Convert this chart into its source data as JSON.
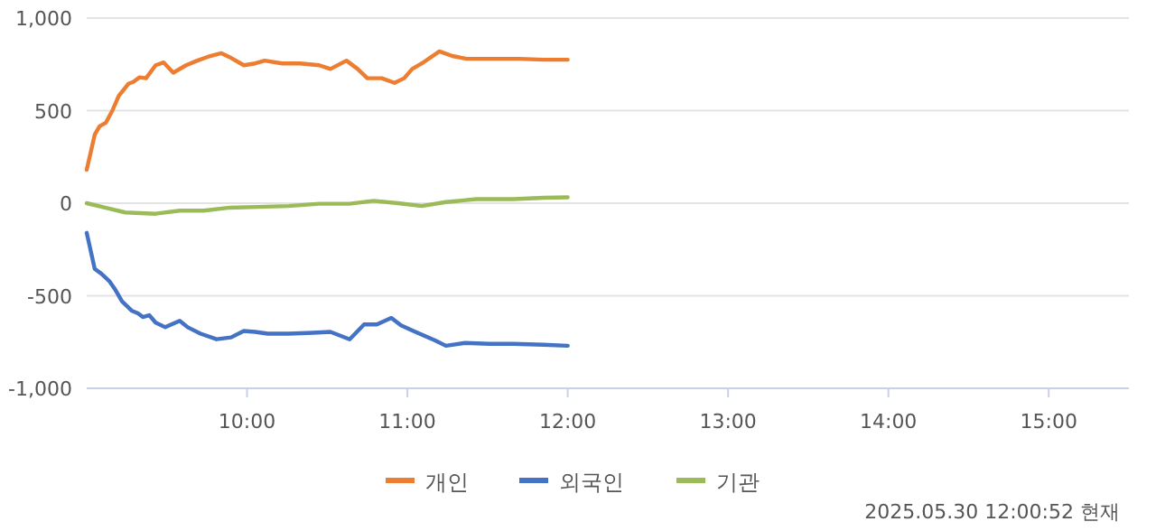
{
  "chart_data": {
    "type": "line",
    "xlim": [
      9,
      15.5
    ],
    "ylim": [
      -1000,
      1000
    ],
    "xticks": [
      {
        "value": 10,
        "label": "10:00"
      },
      {
        "value": 11,
        "label": "11:00"
      },
      {
        "value": 12,
        "label": "12:00"
      },
      {
        "value": 13,
        "label": "13:00"
      },
      {
        "value": 14,
        "label": "14:00"
      },
      {
        "value": 15,
        "label": "15:00"
      }
    ],
    "yticks": [
      {
        "value": 1000,
        "label": "1,000"
      },
      500,
      0,
      -500,
      {
        "value": -1000,
        "label": "-1,000"
      }
    ],
    "grid": "y",
    "legend": "bottom",
    "annotations": [
      "2025.05.30 12:00:52 현재"
    ],
    "series": [
      {
        "name": "개인",
        "color": "#ed7d31",
        "x": [
          9.0,
          9.05,
          9.08,
          9.12,
          9.16,
          9.2,
          9.26,
          9.29,
          9.33,
          9.37,
          9.43,
          9.48,
          9.54,
          9.62,
          9.69,
          9.77,
          9.84,
          9.9,
          9.98,
          10.05,
          10.11,
          10.22,
          10.33,
          10.45,
          10.52,
          10.62,
          10.69,
          10.75,
          10.84,
          10.92,
          10.98,
          11.03,
          11.09,
          11.2,
          11.28,
          11.37,
          11.54,
          11.7,
          11.85,
          12.0
        ],
        "values": [
          180,
          370,
          415,
          435,
          500,
          580,
          645,
          655,
          680,
          675,
          745,
          760,
          705,
          745,
          770,
          795,
          810,
          785,
          745,
          755,
          770,
          755,
          755,
          745,
          725,
          770,
          725,
          675,
          675,
          650,
          675,
          725,
          755,
          820,
          795,
          780,
          780,
          780,
          775,
          775
        ]
      },
      {
        "name": "외국인",
        "color": "#4472c4",
        "x": [
          9.0,
          9.05,
          9.09,
          9.14,
          9.18,
          9.22,
          9.28,
          9.32,
          9.35,
          9.39,
          9.43,
          9.49,
          9.58,
          9.63,
          9.71,
          9.81,
          9.9,
          9.98,
          10.05,
          10.13,
          10.26,
          10.41,
          10.52,
          10.64,
          10.73,
          10.81,
          10.9,
          10.96,
          11.05,
          11.17,
          11.24,
          11.36,
          11.51,
          11.66,
          11.85,
          12.0
        ],
        "values": [
          -160,
          -355,
          -380,
          -420,
          -470,
          -530,
          -580,
          -595,
          -615,
          -605,
          -645,
          -670,
          -635,
          -670,
          -705,
          -735,
          -725,
          -690,
          -695,
          -705,
          -705,
          -700,
          -695,
          -735,
          -655,
          -655,
          -620,
          -660,
          -695,
          -740,
          -770,
          -755,
          -760,
          -760,
          -765,
          -770
        ]
      },
      {
        "name": "기관",
        "color": "#9bbb59",
        "x": [
          9.0,
          9.12,
          9.24,
          9.43,
          9.58,
          9.73,
          9.88,
          10.07,
          10.26,
          10.45,
          10.64,
          10.79,
          10.94,
          11.09,
          11.24,
          11.43,
          11.66,
          11.85,
          12.0
        ],
        "values": [
          0,
          -25,
          -50,
          -57,
          -40,
          -40,
          -25,
          -20,
          -15,
          -3,
          -3,
          13,
          0,
          -15,
          6,
          22,
          22,
          29,
          32
        ]
      }
    ]
  }
}
